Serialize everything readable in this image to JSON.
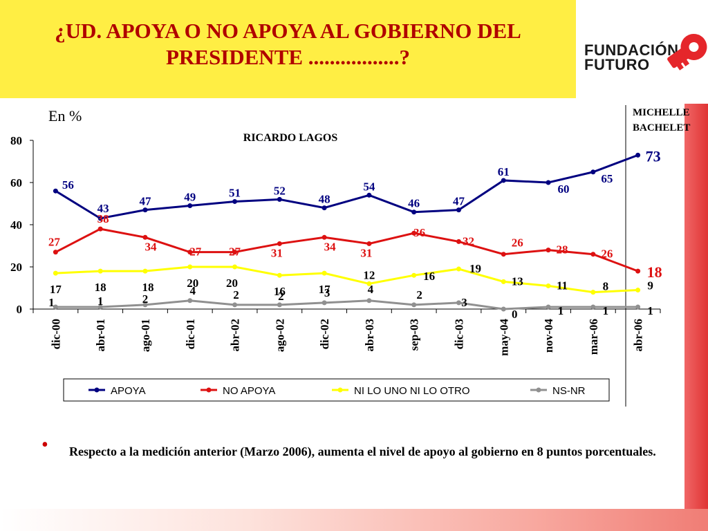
{
  "header": {
    "title": "¿UD. APOYA O NO APOYA AL GOBIERNO DEL PRESIDENTE .................?"
  },
  "logo": {
    "line1": "FUNDACIÓN",
    "line2": "FUTURO"
  },
  "unit_label": "En %",
  "period_labels": {
    "left": "RICARDO LAGOS",
    "right_line1": "MICHELLE",
    "right_line2": "BACHELET"
  },
  "chart_data": {
    "type": "line",
    "categories": [
      "dic-00",
      "abr-01",
      "ago-01",
      "dic-01",
      "abr-02",
      "ago-02",
      "dic-02",
      "abr-03",
      "sep-03",
      "dic-03",
      "may-04",
      "nov-04",
      "mar-06",
      "abr-06"
    ],
    "ylim": [
      0,
      80
    ],
    "yticks": [
      0,
      20,
      40,
      60,
      80
    ],
    "grid": false,
    "legend_position": "bottom",
    "series": [
      {
        "name": "APOYA",
        "color": "#000080",
        "values": [
          56,
          43,
          47,
          49,
          51,
          52,
          48,
          54,
          46,
          47,
          61,
          60,
          65,
          73
        ]
      },
      {
        "name": "NO APOYA",
        "color": "#dd1111",
        "values": [
          27,
          38,
          34,
          27,
          27,
          31,
          34,
          31,
          36,
          32,
          26,
          28,
          26,
          18
        ]
      },
      {
        "name": "NI LO UNO NI LO OTRO",
        "color": "#ffff00",
        "values": [
          17,
          18,
          18,
          20,
          20,
          16,
          17,
          12,
          16,
          19,
          13,
          11,
          8,
          9
        ]
      },
      {
        "name": "NS-NR",
        "color": "#909090",
        "values": [
          1,
          1,
          2,
          4,
          2,
          2,
          3,
          4,
          2,
          3,
          0,
          1,
          1,
          1
        ]
      }
    ]
  },
  "note": "Respecto a la medición anterior (Marzo 2006), aumenta el nivel de apoyo al gobierno en 8 puntos porcentuales."
}
